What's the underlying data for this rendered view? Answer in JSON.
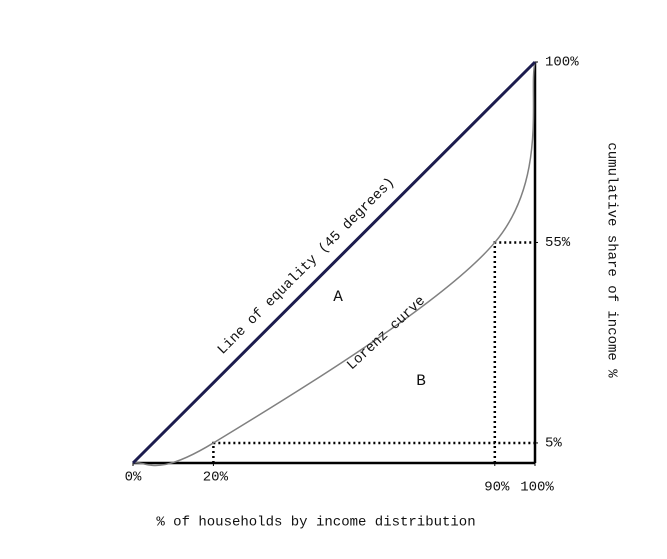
{
  "chart_data": {
    "type": "lorenz",
    "x_label": "% of households by income distribution",
    "y_label": "cumulative share of income %",
    "x": [
      0,
      20,
      90,
      100
    ],
    "series": [
      {
        "name": "Line of equality (45 degrees)",
        "color": "#1c1c4e",
        "values": [
          0,
          20,
          90,
          100
        ]
      },
      {
        "name": "Lorenz curve",
        "color": "#808080",
        "values": [
          0,
          5,
          55,
          100
        ]
      }
    ],
    "annotations": [
      "A",
      "B"
    ],
    "xlim": [
      0,
      100
    ],
    "ylim": [
      0,
      100
    ],
    "xticks": [
      {
        "value": 0,
        "label": "0%"
      },
      {
        "value": 20,
        "label": "20%"
      },
      {
        "value": 90,
        "label": "90%"
      },
      {
        "value": 100,
        "label": "100%"
      }
    ],
    "yticks": [
      {
        "value": 5,
        "label": "5%"
      },
      {
        "value": 55,
        "label": "55%"
      },
      {
        "value": 100,
        "label": "100%"
      }
    ]
  }
}
